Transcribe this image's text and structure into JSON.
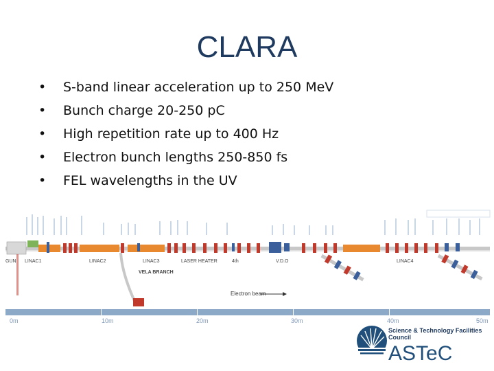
{
  "slide": {
    "title": "CLARA",
    "bullets": [
      "S-band linear acceleration up to 250 MeV",
      "Bunch charge 20-250 pC",
      "High repetition rate up to 400 Hz",
      "Electron bunch lengths 250-850 fs",
      "FEL wavelengths in the UV"
    ],
    "bullet_glyph": "•"
  },
  "diagram": {
    "section_labels": [
      "GUN",
      "LINAC1",
      "LINAC2",
      "LINAC3",
      "LASER HEATER",
      "4th",
      "V.D.O",
      "LINAC4",
      "VELA BRANCH",
      "Electron beam"
    ],
    "electron_beam_label": "Electron beam",
    "scale_labels": [
      "0m",
      "10m",
      "20m",
      "30m",
      "40m",
      "50m"
    ],
    "colors": {
      "beamline": "#c8c8c8",
      "linac": "#e8892f",
      "magnet": "#c0392b",
      "scale": "#8da9c8",
      "blue": "#3a5f9a"
    }
  },
  "logo": {
    "org_line": "Science & Technology Facilities Council",
    "name": "ASTeC",
    "color": "#1f4f7a"
  }
}
